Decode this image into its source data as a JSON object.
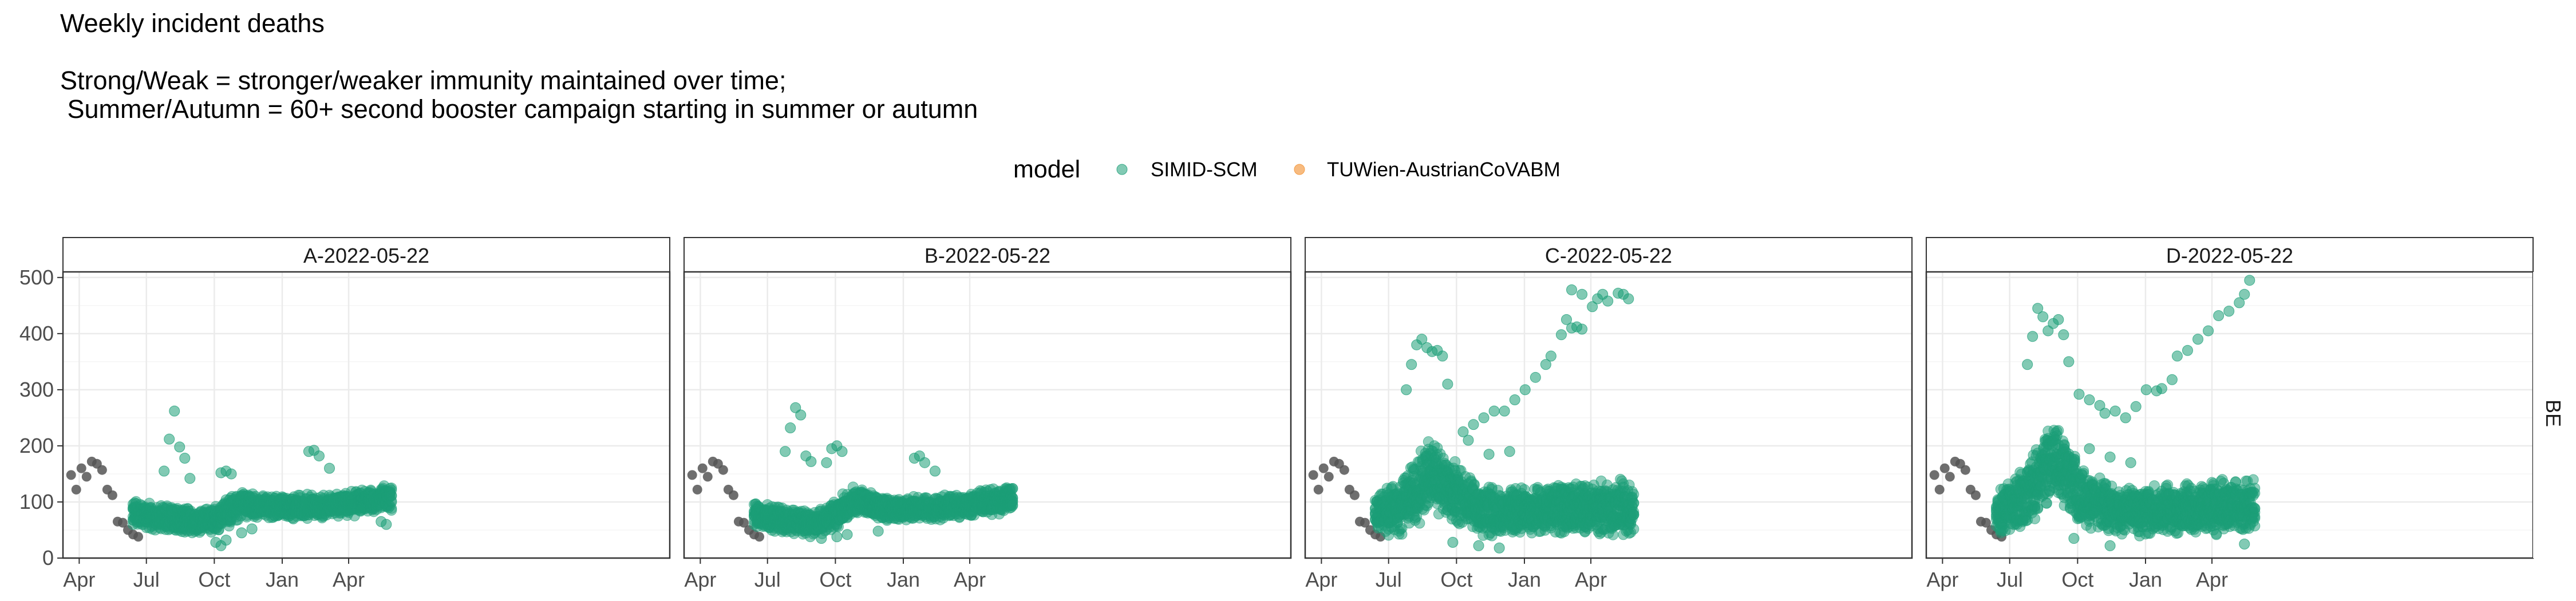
{
  "header": {
    "title": "Weekly incident deaths",
    "subtitle_line1": "Strong/Weak = stronger/weaker immunity maintained over time;",
    "subtitle_line2": " Summer/Autumn = 60+ second booster campaign starting in summer or autumn"
  },
  "legend": {
    "title": "model",
    "placement": "top",
    "entries": [
      {
        "label": "SIMID-SCM",
        "color": "#1b9e77"
      },
      {
        "label": "TUWien-AustrianCoVABM",
        "color": "#f28e2b"
      }
    ]
  },
  "colors": {
    "observed": "#555555",
    "panel_border": "#333333",
    "grid_major": "#ebebeb",
    "grid_minor": "#f5f5f5"
  },
  "chart_data": {
    "type": "scatter",
    "facet_row_label": "BE",
    "ylim": [
      0,
      510
    ],
    "y_ticks": [
      0,
      100,
      200,
      300,
      400,
      500
    ],
    "grid": true,
    "x_range": [
      "2021-03-10",
      "2023-06-10"
    ],
    "x_ticks": [
      {
        "date": "2021-04-01",
        "label": "Apr"
      },
      {
        "date": "2021-07-01",
        "label": "Jul"
      },
      {
        "date": "2021-10-01",
        "label": "Oct"
      },
      {
        "date": "2022-01-01",
        "label": "Jan"
      },
      {
        "date": "2022-04-01",
        "label": "Apr"
      }
    ],
    "observed": {
      "x": [
        "2021-03-21",
        "2021-03-28",
        "2021-04-04",
        "2021-04-11",
        "2021-04-18",
        "2021-04-25",
        "2021-05-02",
        "2021-05-09",
        "2021-05-16",
        "2021-05-23",
        "2021-05-30",
        "2021-06-06",
        "2021-06-13",
        "2021-06-20"
      ],
      "y": [
        148,
        122,
        160,
        145,
        172,
        168,
        157,
        122,
        112,
        65,
        63,
        50,
        42,
        38
      ]
    },
    "panels": [
      {
        "title": "A-2022-05-22",
        "series": [
          {
            "name": "SIMID-SCM",
            "start": "2021-06-13",
            "end": "2022-05-29",
            "band_center": [
              [
                0,
                78
              ],
              [
                0.1,
                72
              ],
              [
                0.25,
                65
              ],
              [
                0.33,
                72
              ],
              [
                0.42,
                95
              ],
              [
                0.6,
                90
              ],
              [
                0.8,
                95
              ],
              [
                1,
                108
              ]
            ],
            "band_halfwidth": [
              [
                0,
                25
              ],
              [
                0.2,
                25
              ],
              [
                0.35,
                28
              ],
              [
                0.5,
                22
              ],
              [
                1,
                25
              ]
            ],
            "outliers": [
              [
                "2021-08-08",
                262
              ],
              [
                "2021-08-01",
                212
              ],
              [
                "2021-08-15",
                198
              ],
              [
                "2021-08-22",
                178
              ],
              [
                "2021-07-25",
                155
              ],
              [
                "2021-08-29",
                142
              ],
              [
                "2021-10-10",
                152
              ],
              [
                "2021-10-17",
                155
              ],
              [
                "2021-10-24",
                150
              ],
              [
                "2021-10-03",
                28
              ],
              [
                "2021-10-10",
                22
              ],
              [
                "2021-10-17",
                32
              ],
              [
                "2021-11-07",
                45
              ],
              [
                "2021-11-21",
                52
              ],
              [
                "2022-02-06",
                190
              ],
              [
                "2022-02-13",
                192
              ],
              [
                "2022-02-20",
                182
              ],
              [
                "2022-03-06",
                160
              ],
              [
                "2022-05-15",
                65
              ],
              [
                "2022-05-22",
                60
              ],
              [
                "2022-04-17",
                85
              ],
              [
                "2022-01-16",
                70
              ]
            ]
          },
          {
            "name": "TUWien-AustrianCoVABM",
            "start": "",
            "end": "",
            "band_center": [],
            "band_halfwidth": [],
            "outliers": []
          }
        ]
      },
      {
        "title": "B-2022-05-22",
        "series": [
          {
            "name": "SIMID-SCM",
            "start": "2021-06-13",
            "end": "2022-05-29",
            "band_center": [
              [
                0,
                78
              ],
              [
                0.1,
                68
              ],
              [
                0.25,
                60
              ],
              [
                0.32,
                80
              ],
              [
                0.4,
                105
              ],
              [
                0.5,
                88
              ],
              [
                0.7,
                88
              ],
              [
                1,
                105
              ]
            ],
            "band_halfwidth": [
              [
                0,
                24
              ],
              [
                0.2,
                25
              ],
              [
                0.35,
                30
              ],
              [
                0.5,
                22
              ],
              [
                1,
                24
              ]
            ],
            "outliers": [
              [
                "2021-08-08",
                268
              ],
              [
                "2021-08-15",
                255
              ],
              [
                "2021-08-01",
                232
              ],
              [
                "2021-07-25",
                190
              ],
              [
                "2021-08-22",
                182
              ],
              [
                "2021-08-29",
                172
              ],
              [
                "2021-09-26",
                195
              ],
              [
                "2021-10-03",
                200
              ],
              [
                "2021-10-10",
                190
              ],
              [
                "2021-09-19",
                170
              ],
              [
                "2021-10-03",
                38
              ],
              [
                "2021-10-17",
                42
              ],
              [
                "2021-09-12",
                35
              ],
              [
                "2022-01-16",
                178
              ],
              [
                "2022-01-23",
                182
              ],
              [
                "2022-01-30",
                170
              ],
              [
                "2022-02-13",
                155
              ],
              [
                "2021-11-28",
                48
              ]
            ]
          },
          {
            "name": "TUWien-AustrianCoVABM",
            "start": "",
            "end": "",
            "band_center": [],
            "band_halfwidth": [],
            "outliers": []
          }
        ]
      },
      {
        "title": "C-2022-05-22",
        "series": [
          {
            "name": "SIMID-SCM",
            "start": "2021-06-13",
            "end": "2022-05-29",
            "band_center": [
              [
                0,
                78
              ],
              [
                0.12,
                100
              ],
              [
                0.22,
                150
              ],
              [
                0.3,
                120
              ],
              [
                0.4,
                85
              ],
              [
                0.6,
                85
              ],
              [
                0.8,
                88
              ],
              [
                1,
                90
              ]
            ],
            "band_halfwidth": [
              [
                0,
                40
              ],
              [
                0.2,
                75
              ],
              [
                0.35,
                55
              ],
              [
                0.5,
                45
              ],
              [
                1,
                55
              ]
            ],
            "outliers": [
              [
                "2021-08-01",
                345
              ],
              [
                "2021-08-08",
                380
              ],
              [
                "2021-08-15",
                390
              ],
              [
                "2021-08-22",
                375
              ],
              [
                "2021-08-29",
                368
              ],
              [
                "2021-09-05",
                370
              ],
              [
                "2021-09-12",
                360
              ],
              [
                "2021-07-25",
                300
              ],
              [
                "2021-09-19",
                310
              ],
              [
                "2021-10-10",
                225
              ],
              [
                "2021-10-24",
                238
              ],
              [
                "2021-11-07",
                250
              ],
              [
                "2021-11-21",
                262
              ],
              [
                "2021-12-05",
                262
              ],
              [
                "2021-12-19",
                282
              ],
              [
                "2022-01-02",
                300
              ],
              [
                "2022-01-16",
                322
              ],
              [
                "2022-01-30",
                345
              ],
              [
                "2022-02-06",
                360
              ],
              [
                "2022-02-20",
                398
              ],
              [
                "2022-02-27",
                425
              ],
              [
                "2022-03-06",
                410
              ],
              [
                "2022-03-13",
                412
              ],
              [
                "2022-03-20",
                408
              ],
              [
                "2022-03-06",
                478
              ],
              [
                "2022-03-20",
                470
              ],
              [
                "2022-04-03",
                448
              ],
              [
                "2022-04-10",
                462
              ],
              [
                "2022-04-17",
                470
              ],
              [
                "2022-04-24",
                458
              ],
              [
                "2022-05-08",
                472
              ],
              [
                "2022-05-15",
                470
              ],
              [
                "2022-05-22",
                462
              ],
              [
                "2021-10-17",
                210
              ],
              [
                "2021-11-14",
                185
              ],
              [
                "2021-12-12",
                190
              ],
              [
                "2021-09-26",
                28
              ],
              [
                "2021-10-31",
                22
              ],
              [
                "2021-11-28",
                18
              ]
            ]
          },
          {
            "name": "TUWien-AustrianCoVABM",
            "start": "",
            "end": "",
            "band_center": [],
            "band_halfwidth": [],
            "outliers": []
          }
        ]
      },
      {
        "title": "D-2022-05-22",
        "series": [
          {
            "name": "SIMID-SCM",
            "start": "2021-06-13",
            "end": "2022-05-29",
            "band_center": [
              [
                0,
                78
              ],
              [
                0.12,
                110
              ],
              [
                0.22,
                180
              ],
              [
                0.32,
                115
              ],
              [
                0.45,
                85
              ],
              [
                0.65,
                85
              ],
              [
                0.85,
                90
              ],
              [
                1,
                95
              ]
            ],
            "band_halfwidth": [
              [
                0,
                40
              ],
              [
                0.2,
                80
              ],
              [
                0.35,
                55
              ],
              [
                0.5,
                45
              ],
              [
                1,
                55
              ]
            ],
            "outliers": [
              [
                "2021-07-25",
                345
              ],
              [
                "2021-08-01",
                395
              ],
              [
                "2021-08-08",
                445
              ],
              [
                "2021-08-15",
                430
              ],
              [
                "2021-08-22",
                405
              ],
              [
                "2021-08-29",
                418
              ],
              [
                "2021-09-05",
                425
              ],
              [
                "2021-09-12",
                398
              ],
              [
                "2021-09-19",
                350
              ],
              [
                "2021-10-03",
                292
              ],
              [
                "2021-10-17",
                282
              ],
              [
                "2021-10-31",
                272
              ],
              [
                "2021-11-07",
                258
              ],
              [
                "2021-11-21",
                262
              ],
              [
                "2021-12-05",
                250
              ],
              [
                "2021-12-19",
                270
              ],
              [
                "2022-01-02",
                300
              ],
              [
                "2022-01-16",
                298
              ],
              [
                "2022-01-23",
                302
              ],
              [
                "2022-02-06",
                318
              ],
              [
                "2022-02-13",
                360
              ],
              [
                "2022-02-27",
                370
              ],
              [
                "2022-03-13",
                390
              ],
              [
                "2022-03-27",
                405
              ],
              [
                "2022-04-10",
                432
              ],
              [
                "2022-04-24",
                440
              ],
              [
                "2022-05-08",
                455
              ],
              [
                "2022-05-15",
                470
              ],
              [
                "2022-05-22",
                495
              ],
              [
                "2021-10-17",
                195
              ],
              [
                "2021-11-14",
                180
              ],
              [
                "2021-12-12",
                170
              ],
              [
                "2021-09-26",
                35
              ],
              [
                "2021-11-14",
                22
              ],
              [
                "2022-05-15",
                25
              ]
            ]
          },
          {
            "name": "TUWien-AustrianCoVABM",
            "start": "",
            "end": "",
            "band_center": [],
            "band_halfwidth": [],
            "outliers": []
          }
        ]
      }
    ]
  }
}
